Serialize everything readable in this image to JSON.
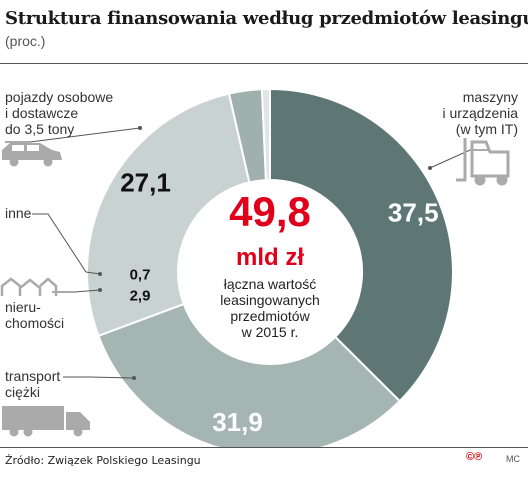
{
  "title": "Struktura finansowania według przedmiotów leasingu",
  "subtitle": "(proc.)",
  "source": "Źródło: Związek Polskiego Leasingu",
  "copyright_mark": "©℗",
  "author_initials": "MC",
  "center": {
    "value": "49,8",
    "unit": "mld zł",
    "desc_lines": [
      "łączna wartość",
      "leasingowanych",
      "przedmiotów",
      "w 2015 r."
    ]
  },
  "colors": {
    "pojazdy": "#5e7775",
    "maszyny": "#a4b5b2",
    "transport": "#c8d3d1",
    "nieruchomosci": "#9fb0ad",
    "inne": "#dfe6e5",
    "center_value": "#e0001b",
    "leader_line": "#555555",
    "icon": "#aaaaaa"
  },
  "chart_data": {
    "type": "pie",
    "title": "Struktura finansowania według przedmiotów leasingu",
    "unit": "proc.",
    "slices": [
      {
        "key": "pojazdy",
        "label_lines": [
          "pojazdy osobowe",
          "i dostawcze",
          "do 3,5 tony"
        ],
        "value": 37.5,
        "value_label": "37,5",
        "icon": "car-icon"
      },
      {
        "key": "maszyny",
        "label_lines": [
          "maszyny",
          "i urządzenia",
          "(w tym IT)"
        ],
        "value": 31.9,
        "value_label": "31,9",
        "icon": "forklift-icon"
      },
      {
        "key": "transport",
        "label_lines": [
          "transport",
          "ciężki"
        ],
        "value": 27.1,
        "value_label": "27,1",
        "icon": "truck-icon"
      },
      {
        "key": "nieruchomosci",
        "label_lines": [
          "nieru-",
          "chomości"
        ],
        "value": 2.9,
        "value_label": "2,9",
        "icon": "houses-icon"
      },
      {
        "key": "inne",
        "label_lines": [
          "inne"
        ],
        "value": 0.7,
        "value_label": "0,7",
        "icon": ""
      }
    ]
  }
}
